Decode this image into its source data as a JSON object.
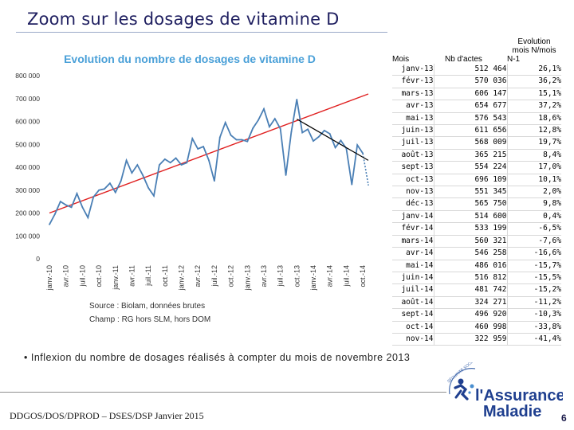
{
  "slide": {
    "title": "Zoom sur les dosages de vitamine D",
    "bullet": "• Inflexion du nombre de dosages réalisés à compter du mois de novembre 2013",
    "footer": "DDGOS/DOS/DPROD – DSES/DSP Janvier 2015",
    "page_number": "6",
    "source_line1": "Source : Biolam, données brutes",
    "source_line2": "Champ : RG hors SLM, hors DOM"
  },
  "logo": {
    "small_text": "SÉCURITÉ SOCIALE",
    "line1": "l'Assurance",
    "line2": "Maladie"
  },
  "colors": {
    "series": "#4a7fb5",
    "trend": "#e02020",
    "recent_trend": "#000000",
    "title": "#1f1f60",
    "chart_title": "#4aa0d8"
  },
  "chart_data": {
    "type": "line",
    "title": "Evolution du nombre de dosages de vitamine D",
    "xlabel": "",
    "ylabel": "",
    "ylim": [
      0,
      800000
    ],
    "yticks": [
      "0",
      "100 000",
      "200 000",
      "300 000",
      "400 000",
      "500 000",
      "600 000",
      "700 000",
      "800 000"
    ],
    "xtick_labels": [
      "janv.-10",
      "avr.-10",
      "juil.-10",
      "oct.-10",
      "janv.-11",
      "avr.-11",
      "juil.-11",
      "oct.-11",
      "janv.-12",
      "avr.-12",
      "juil.-12",
      "oct.-12",
      "janv.-13",
      "avr.-13",
      "juil.-13",
      "oct.-13",
      "janv.-14",
      "avr.-14",
      "juil.-14",
      "oct.-14"
    ],
    "x": [
      "2010-01",
      "2010-02",
      "2010-03",
      "2010-04",
      "2010-05",
      "2010-06",
      "2010-07",
      "2010-08",
      "2010-09",
      "2010-10",
      "2010-11",
      "2010-12",
      "2011-01",
      "2011-02",
      "2011-03",
      "2011-04",
      "2011-05",
      "2011-06",
      "2011-07",
      "2011-08",
      "2011-09",
      "2011-10",
      "2011-11",
      "2011-12",
      "2012-01",
      "2012-02",
      "2012-03",
      "2012-04",
      "2012-05",
      "2012-06",
      "2012-07",
      "2012-08",
      "2012-09",
      "2012-10",
      "2012-11",
      "2012-12",
      "2013-01",
      "2013-02",
      "2013-03",
      "2013-04",
      "2013-05",
      "2013-06",
      "2013-07",
      "2013-08",
      "2013-09",
      "2013-10",
      "2013-11",
      "2013-12",
      "2014-01",
      "2014-02",
      "2014-03",
      "2014-04",
      "2014-05",
      "2014-06",
      "2014-07",
      "2014-08",
      "2014-09",
      "2014-10",
      "2014-11"
    ],
    "series": [
      {
        "values": [
          150000,
          195000,
          250000,
          235000,
          225000,
          285000,
          225000,
          180000,
          270000,
          300000,
          305000,
          330000,
          290000,
          340000,
          430000,
          375000,
          410000,
          365000,
          310000,
          275000,
          410000,
          435000,
          420000,
          440000,
          410000,
          420000,
          525000,
          480000,
          490000,
          430000,
          340000,
          530000,
          595000,
          540000,
          520000,
          520000,
          512464,
          570036,
          606147,
          654677,
          576543,
          611656,
          568009,
          365215,
          554224,
          696109,
          551345,
          565750,
          514600,
          533199,
          560321,
          546258,
          486016,
          516812,
          481742,
          324271,
          496920,
          460998,
          322959
        ]
      }
    ],
    "trend_line": {
      "from": [
        "2010-01",
        200000
      ],
      "to": [
        "2014-11",
        720000
      ]
    },
    "recent_trend_line": {
      "from": [
        "2013-10",
        610000
      ],
      "to": [
        "2014-11",
        430000
      ]
    },
    "grid": false
  },
  "table": {
    "headers": [
      "Mois",
      "Nb d'actes",
      "Evolution mois N/mois N-1"
    ],
    "header_lines": [
      "Evolution",
      "mois N/mois",
      "N-1"
    ],
    "rows": [
      [
        "janv-13",
        "512 464",
        "26,1%"
      ],
      [
        "févr-13",
        "570 036",
        "36,2%"
      ],
      [
        "mars-13",
        "606 147",
        "15,1%"
      ],
      [
        "avr-13",
        "654 677",
        "37,2%"
      ],
      [
        "mai-13",
        "576 543",
        "18,6%"
      ],
      [
        "juin-13",
        "611 656",
        "12,8%"
      ],
      [
        "juil-13",
        "568 009",
        "19,7%"
      ],
      [
        "août-13",
        "365 215",
        "8,4%"
      ],
      [
        "sept-13",
        "554 224",
        "17,0%"
      ],
      [
        "oct-13",
        "696 109",
        "10,1%"
      ],
      [
        "nov-13",
        "551 345",
        "2,0%"
      ],
      [
        "déc-13",
        "565 750",
        "9,8%"
      ],
      [
        "janv-14",
        "514 600",
        "0,4%"
      ],
      [
        "févr-14",
        "533 199",
        "-6,5%"
      ],
      [
        "mars-14",
        "560 321",
        "-7,6%"
      ],
      [
        "avr-14",
        "546 258",
        "-16,6%"
      ],
      [
        "mai-14",
        "486 016",
        "-15,7%"
      ],
      [
        "juin-14",
        "516 812",
        "-15,5%"
      ],
      [
        "juil-14",
        "481 742",
        "-15,2%"
      ],
      [
        "août-14",
        "324 271",
        "-11,2%"
      ],
      [
        "sept-14",
        "496 920",
        "-10,3%"
      ],
      [
        "oct-14",
        "460 998",
        "-33,8%"
      ],
      [
        "nov-14",
        "322 959",
        "-41,4%"
      ]
    ]
  }
}
